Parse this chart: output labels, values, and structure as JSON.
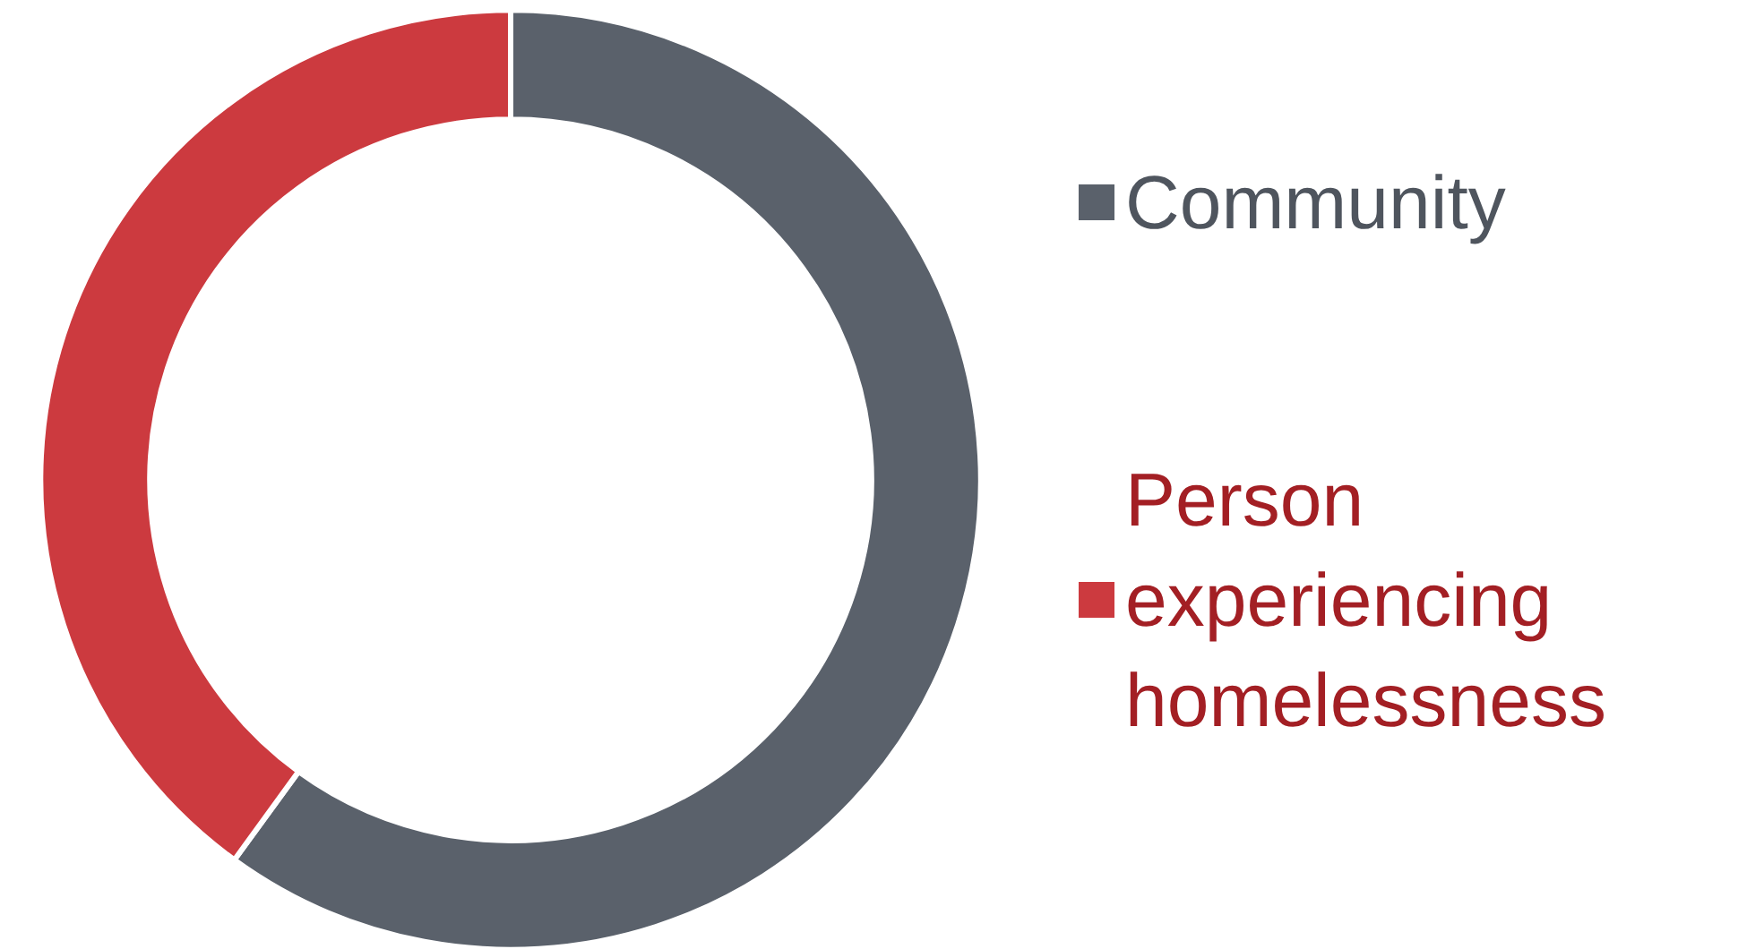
{
  "chart_data": {
    "type": "donut",
    "categories": [
      "Community",
      "Person experiencing homelessness"
    ],
    "values": [
      60,
      40
    ],
    "colors": [
      "#5a616b",
      "#cc3a3f"
    ],
    "legend": "right"
  }
}
